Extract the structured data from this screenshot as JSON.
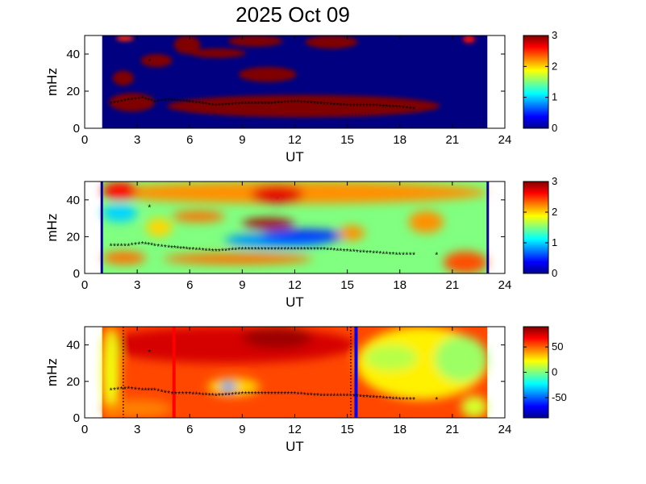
{
  "title": "2025 Oct 09",
  "chart_data": [
    {
      "type": "heatmap",
      "xlabel": "UT",
      "ylabel": "mHz",
      "xlim": [
        0,
        24
      ],
      "ylim": [
        0,
        50
      ],
      "xticks": [
        "0",
        "3",
        "6",
        "9",
        "12",
        "15",
        "18",
        "21",
        "24"
      ],
      "yticks": [
        "0",
        "20",
        "40"
      ],
      "clim": [
        0,
        3
      ],
      "colorbar_ticks": [
        "0",
        "1",
        "2",
        "3"
      ],
      "data_span_ut": [
        1.0,
        23.0
      ],
      "background_value": 0,
      "blobs": [
        {
          "x": [
            4.7,
            20.3
          ],
          "y": [
            6,
            18
          ],
          "value": 3
        },
        {
          "x": [
            1.4,
            4.0
          ],
          "y": [
            9,
            19
          ],
          "value": 3
        },
        {
          "x": [
            1.6,
            2.8
          ],
          "y": [
            23,
            31
          ],
          "value": 3
        },
        {
          "x": [
            3.2,
            5.0
          ],
          "y": [
            33,
            40
          ],
          "value": 3
        },
        {
          "x": [
            8.8,
            12.1
          ],
          "y": [
            25,
            33
          ],
          "value": 3
        },
        {
          "x": [
            5.1,
            6.6
          ],
          "y": [
            40,
            50
          ],
          "value": 3
        },
        {
          "x": [
            8.2,
            11.3
          ],
          "y": [
            44,
            50
          ],
          "value": 3
        },
        {
          "x": [
            6.0,
            9.2
          ],
          "y": [
            38,
            43
          ],
          "value": 3
        },
        {
          "x": [
            12.6,
            15.6
          ],
          "y": [
            43,
            50
          ],
          "value": 3
        },
        {
          "x": [
            1.8,
            2.8
          ],
          "y": [
            47,
            50
          ],
          "value": 2.5
        },
        {
          "x": [
            21.6,
            22.3
          ],
          "y": [
            46,
            50
          ],
          "value": 2.6
        }
      ],
      "peak_trace": {
        "x": [
          1.5,
          2.5,
          3.3,
          4.0,
          4.8,
          6.0,
          7.5,
          9.0,
          10.5,
          12.0,
          13.5,
          15.0,
          16.5,
          18.0,
          19.0
        ],
        "y": [
          13,
          15,
          16,
          14,
          15,
          14,
          12,
          13,
          13,
          14,
          13,
          12,
          12,
          11,
          10
        ]
      },
      "extra_points": {
        "x": [
          3.7
        ],
        "y": [
          36
        ]
      }
    },
    {
      "type": "heatmap",
      "xlabel": "UT",
      "ylabel": "mHz",
      "xlim": [
        0,
        24
      ],
      "ylim": [
        0,
        50
      ],
      "xticks": [
        "0",
        "3",
        "6",
        "9",
        "12",
        "15",
        "18",
        "21",
        "24"
      ],
      "yticks": [
        "0",
        "20",
        "40"
      ],
      "clim": [
        0,
        3
      ],
      "colorbar_ticks": [
        "0",
        "1",
        "2",
        "3"
      ],
      "data_span_ut": [
        1.0,
        23.0
      ],
      "background_value": 1.5,
      "blobs": [
        {
          "x": [
            1.0,
            23.0
          ],
          "y": [
            38,
            50
          ],
          "value": 2.2
        },
        {
          "x": [
            1.0,
            3.0
          ],
          "y": [
            40,
            50
          ],
          "value": 2.6
        },
        {
          "x": [
            9.0,
            12.0
          ],
          "y": [
            24,
            30
          ],
          "value": 2.9
        },
        {
          "x": [
            9.5,
            12.5
          ],
          "y": [
            38,
            48
          ],
          "value": 2.7
        },
        {
          "x": [
            5.0,
            8.0
          ],
          "y": [
            28,
            34
          ],
          "value": 2.3
        },
        {
          "x": [
            1.0,
            3.5
          ],
          "y": [
            5,
            12
          ],
          "value": 2.3
        },
        {
          "x": [
            4.5,
            13.0
          ],
          "y": [
            5,
            11
          ],
          "value": 2.3
        },
        {
          "x": [
            3.5,
            5.0
          ],
          "y": [
            20,
            30
          ],
          "value": 2.0
        },
        {
          "x": [
            8.0,
            14.0
          ],
          "y": [
            14,
            22
          ],
          "value": 0.8
        },
        {
          "x": [
            10.0,
            15.0
          ],
          "y": [
            17,
            24
          ],
          "value": 0.5
        },
        {
          "x": [
            1.0,
            3.0
          ],
          "y": [
            28,
            38
          ],
          "value": 1.0
        },
        {
          "x": [
            20.5,
            23.0
          ],
          "y": [
            0,
            12
          ],
          "value": 2.4
        },
        {
          "x": [
            18.5,
            20.5
          ],
          "y": [
            22,
            34
          ],
          "value": 2.2
        },
        {
          "x": [
            14.5,
            16.0
          ],
          "y": [
            18,
            26
          ],
          "value": 2.2
        }
      ],
      "peak_trace": {
        "x": [
          1.5,
          2.5,
          3.3,
          4.0,
          4.8,
          6.0,
          7.5,
          9.0,
          10.5,
          12.0,
          13.5,
          15.0,
          16.5,
          18.0,
          19.0
        ],
        "y": [
          15,
          15,
          16,
          15,
          14,
          13,
          12,
          13,
          13,
          13,
          13,
          12,
          11,
          10,
          10
        ]
      },
      "extra_points": {
        "x": [
          3.7,
          20.1
        ],
        "y": [
          36,
          10
        ]
      }
    },
    {
      "type": "heatmap",
      "xlabel": "UT",
      "ylabel": "mHz",
      "xlim": [
        0,
        24
      ],
      "ylim": [
        0,
        50
      ],
      "xticks": [
        "0",
        "3",
        "6",
        "9",
        "12",
        "15",
        "18",
        "21",
        "24"
      ],
      "yticks": [
        "0",
        "20",
        "40"
      ],
      "clim": [
        -90,
        90
      ],
      "colorbar_ticks": [
        "50",
        "0",
        "-50"
      ],
      "colorbar_tick_values": [
        50,
        0,
        -50
      ],
      "data_span_ut": [
        1.0,
        23.0
      ],
      "background_value": 55,
      "blobs": [
        {
          "x": [
            1.0,
            15.5
          ],
          "y": [
            30,
            50
          ],
          "value": 75
        },
        {
          "x": [
            9.0,
            13.0
          ],
          "y": [
            38,
            50
          ],
          "value": 85
        },
        {
          "x": [
            7.0,
            10.0
          ],
          "y": [
            12,
            22
          ],
          "value": 30
        },
        {
          "x": [
            7.8,
            8.6
          ],
          "y": [
            14,
            20
          ],
          "value": -40
        },
        {
          "x": [
            15.5,
            23.0
          ],
          "y": [
            10,
            50
          ],
          "value": 25
        },
        {
          "x": [
            16.0,
            19.0
          ],
          "y": [
            26,
            40
          ],
          "value": 10
        },
        {
          "x": [
            20.0,
            23.0
          ],
          "y": [
            20,
            45
          ],
          "value": 5
        },
        {
          "x": [
            21.5,
            23.0
          ],
          "y": [
            0,
            12
          ],
          "value": 15
        },
        {
          "x": [
            1.0,
            2.0
          ],
          "y": [
            0,
            50
          ],
          "value": 20
        },
        {
          "x": [
            1.0,
            5.0
          ],
          "y": [
            0,
            10
          ],
          "value": 45
        }
      ],
      "peak_trace": {
        "x": [
          1.5,
          2.5,
          3.3,
          4.0,
          5.0,
          6.0,
          7.5,
          9.0,
          10.5,
          12.0,
          13.5,
          15.0,
          16.5,
          18.0,
          19.0
        ],
        "y": [
          15,
          16,
          15,
          15,
          13,
          13,
          12,
          13,
          13,
          13,
          12,
          12,
          11,
          10,
          10
        ]
      },
      "extra_points": {
        "x": [
          3.7,
          20.1
        ],
        "y": [
          36,
          10
        ]
      },
      "vertical_lines": [
        {
          "x": 2.2,
          "color": "#000000",
          "style": "dotted"
        },
        {
          "x": 5.1,
          "color": "#ff0000",
          "style": "solid"
        },
        {
          "x": 15.2,
          "color": "#000000",
          "style": "dotted"
        },
        {
          "x": 15.5,
          "color": "#0000ff",
          "style": "solid"
        }
      ]
    }
  ]
}
